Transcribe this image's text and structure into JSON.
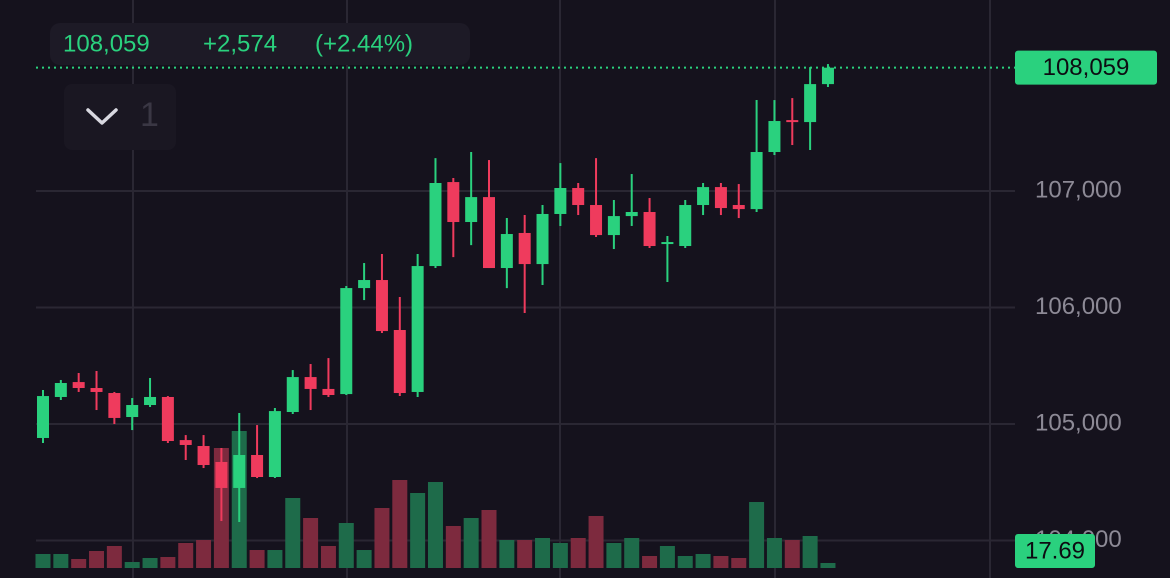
{
  "chart_data": {
    "type": "candlestick",
    "header": {
      "price": "108,059",
      "change": "+2,574",
      "change_pct": "(+2.44%)"
    },
    "indicator_count": "1",
    "open": [
      104880,
      105232,
      105360,
      105309,
      105266,
      105060,
      105163,
      105232,
      104862,
      104811,
      104674,
      104451,
      104734,
      104545,
      105103,
      105403,
      105301,
      105257,
      106167,
      106236,
      105807,
      105275,
      106356,
      107077,
      106734,
      106948,
      106339,
      106640,
      106373,
      106803,
      107026,
      106880,
      106622,
      106785,
      106820,
      106545,
      106528,
      106880,
      107034,
      106880,
      106845,
      107335,
      107609,
      107592,
      107918
    ],
    "high": [
      105292,
      105378,
      105438,
      105455,
      105275,
      105223,
      105395,
      105240,
      104905,
      104905,
      104794,
      105094,
      104991,
      105137,
      105463,
      105515,
      105566,
      106185,
      106382,
      106459,
      106090,
      106459,
      107283,
      107112,
      107335,
      107266,
      106768,
      106794,
      106880,
      107240,
      107069,
      107283,
      106923,
      107146,
      106940,
      106614,
      106923,
      107069,
      107069,
      107060,
      107781,
      107781,
      107798,
      108064,
      108090
    ],
    "low": [
      104837,
      105206,
      105275,
      105120,
      105000,
      104948,
      105146,
      104837,
      104691,
      104622,
      104167,
      104159,
      104536,
      104536,
      105086,
      105120,
      105232,
      105249,
      106064,
      105781,
      105240,
      105232,
      106339,
      106433,
      106536,
      106339,
      106167,
      105953,
      106193,
      106700,
      106794,
      106605,
      106502,
      106700,
      106511,
      106219,
      106511,
      106794,
      106794,
      106768,
      106820,
      107309,
      107395,
      107352,
      107893
    ],
    "close": [
      105240,
      105352,
      105309,
      105275,
      105052,
      105163,
      105232,
      104854,
      104820,
      104648,
      104451,
      104734,
      104545,
      105111,
      105403,
      105301,
      105249,
      106167,
      106236,
      105798,
      105266,
      106356,
      107069,
      106734,
      106948,
      106339,
      106631,
      106373,
      106803,
      107026,
      106880,
      106622,
      106785,
      106820,
      106528,
      106562,
      106880,
      107034,
      106854,
      106845,
      107335,
      107601,
      107592,
      107918,
      108059
    ],
    "volumes": [
      49.6,
      49.6,
      31.9,
      60.2,
      77.9,
      21.2,
      35.4,
      38.9,
      88.5,
      99.1,
      424.8,
      485,
      63.7,
      63.7,
      247.8,
      177,
      77.9,
      159.3,
      63.7,
      212.4,
      311.5,
      265.5,
      304.4,
      148.7,
      177,
      205.3,
      99.1,
      99.1,
      106.2,
      88.5,
      106.2,
      184.1,
      88.5,
      106.2,
      42.5,
      77.9,
      42.5,
      49.6,
      42.5,
      35.4,
      233.6,
      106.2,
      99.1,
      113.3,
      17.69
    ],
    "last_price": {
      "value": 108059,
      "label": "108,059"
    },
    "ylim": [
      103678,
      108640
    ],
    "yticks": [
      {
        "value": 104000,
        "label": "104,000"
      },
      {
        "value": 105000,
        "label": "105,000"
      },
      {
        "value": 106000,
        "label": "106,000"
      },
      {
        "value": 107000,
        "label": "107,000"
      }
    ],
    "volume_ylim": [
      0,
      2000
    ],
    "up_color": "#2ad17e",
    "down_color": "#ef3b5d",
    "volume_up_color": "#1e6b4a",
    "volume_down_color": "#7d2a3e",
    "grid": true
  }
}
